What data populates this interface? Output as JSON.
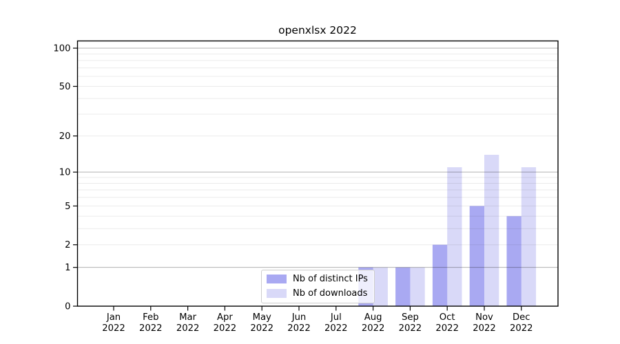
{
  "chart_data": {
    "type": "bar",
    "title": "openxlsx 2022",
    "categories": [
      "Jan",
      "Feb",
      "Mar",
      "Apr",
      "May",
      "Jun",
      "Jul",
      "Aug",
      "Sep",
      "Oct",
      "Nov",
      "Dec"
    ],
    "x_year_label": "2022",
    "series": [
      {
        "name": "Nb of distinct IPs",
        "color": "#a9a9f2",
        "values": [
          0,
          0,
          0,
          0,
          0,
          0,
          0,
          1,
          1,
          2,
          5,
          4
        ]
      },
      {
        "name": "Nb of downloads",
        "color": "#d9d9f8",
        "values": [
          0,
          0,
          0,
          0,
          0,
          0,
          0,
          1,
          1,
          11,
          14,
          11
        ]
      }
    ],
    "yscale": "log1p",
    "ylim": [
      0,
      115
    ],
    "xlabel": "",
    "ylabel": "",
    "grid": true,
    "legend_position": "inside-bottom-center",
    "y_tick_labels": [
      "0",
      "1",
      "2",
      "5",
      "10",
      "20",
      "50",
      "100"
    ],
    "y_tick_values": [
      0,
      1,
      2,
      5,
      10,
      20,
      50,
      100
    ],
    "y_major_gridlines": [
      1,
      10,
      100
    ],
    "y_minor_gridlines": [
      2,
      3,
      4,
      5,
      6,
      7,
      8,
      9,
      20,
      30,
      40,
      50,
      60,
      70,
      80,
      90
    ]
  },
  "colors": {
    "major_grid": "#b0b0b0",
    "minor_grid": "#ebebeb",
    "axis": "#000000",
    "legend_border": "#cccccc"
  }
}
